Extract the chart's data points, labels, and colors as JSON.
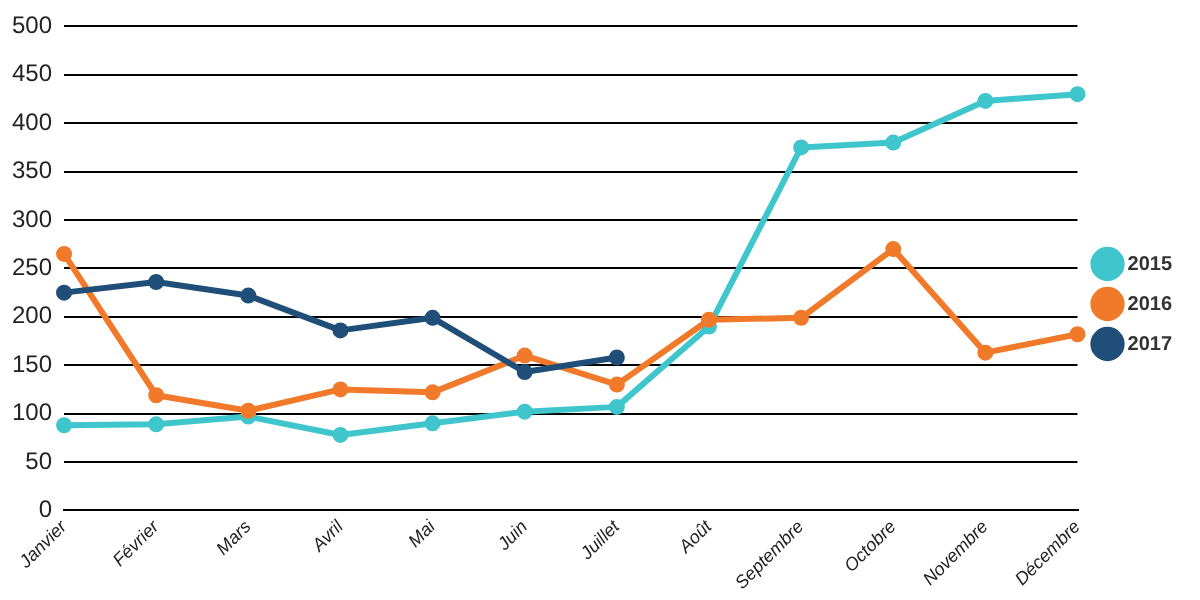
{
  "chart_data": {
    "type": "line",
    "categories": [
      "Janvier",
      "Février",
      "Mars",
      "Avril",
      "Mai",
      "Juin",
      "Juillet",
      "Août",
      "Septembre",
      "Octobre",
      "Novembre",
      "Décembre"
    ],
    "series": [
      {
        "name": "2015",
        "color": "#3ec6cc",
        "values": [
          88,
          89,
          97,
          78,
          90,
          102,
          107,
          190,
          375,
          380,
          423,
          430
        ]
      },
      {
        "name": "2016",
        "color": "#f07a2a",
        "values": [
          265,
          119,
          103,
          125,
          122,
          160,
          130,
          197,
          199,
          270,
          163,
          182
        ]
      },
      {
        "name": "2017",
        "color": "#1f4e79",
        "values": [
          225,
          236,
          222,
          186,
          199,
          143,
          158,
          null,
          null,
          null,
          null,
          null
        ]
      }
    ],
    "ylim": [
      0,
      500
    ],
    "yticks": [
      0,
      50,
      100,
      150,
      200,
      250,
      300,
      350,
      400,
      450,
      500
    ],
    "grid": "y",
    "legend": "right",
    "marker": "circle",
    "line_style": "solid"
  }
}
